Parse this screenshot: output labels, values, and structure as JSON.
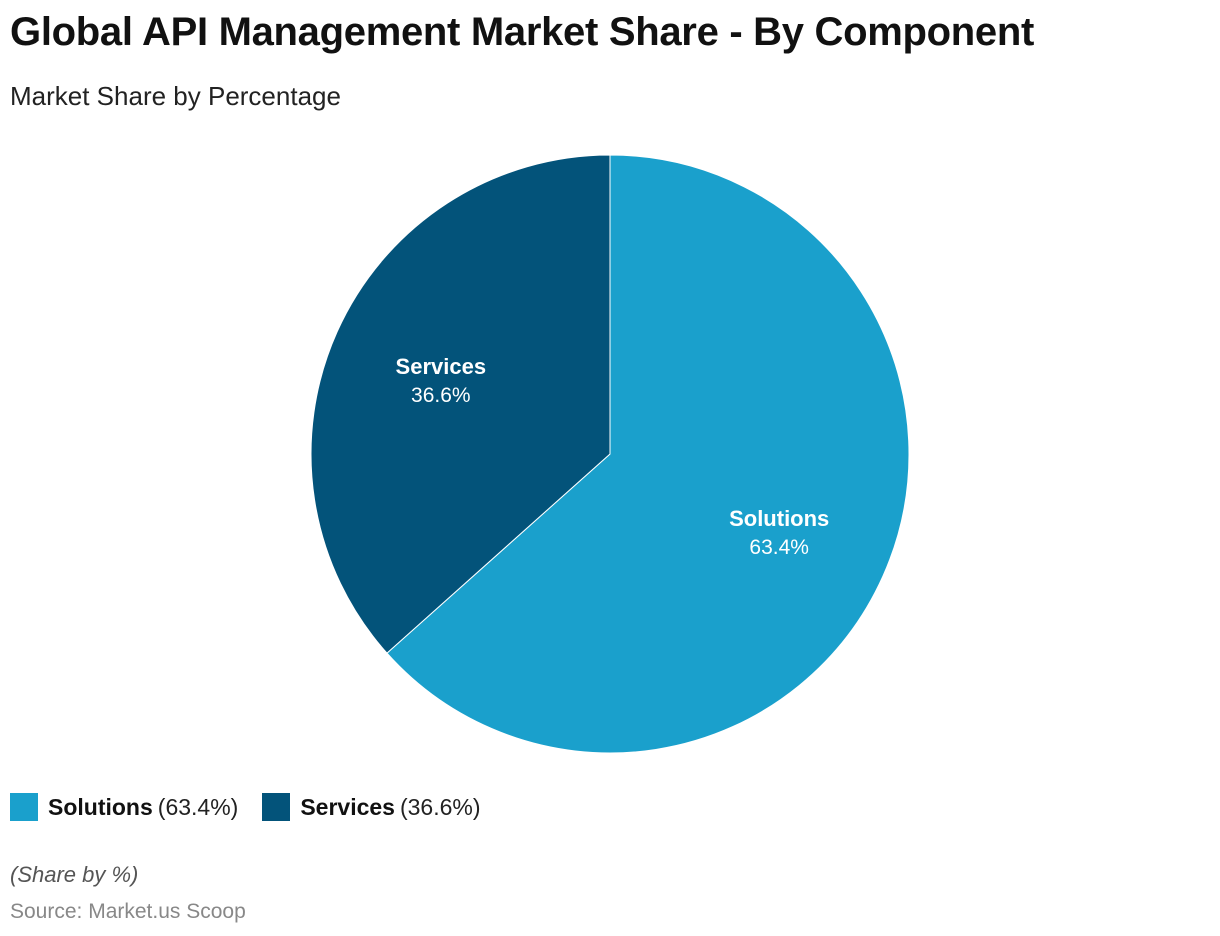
{
  "header": {
    "title": "Global API Management Market Share - By Component",
    "subtitle": "Market Share by Percentage"
  },
  "chart_data": {
    "type": "pie",
    "title": "Global API Management Market Share - By Component",
    "subtitle": "Market Share by Percentage",
    "categories": [
      "Solutions",
      "Services"
    ],
    "values": [
      63.4,
      36.6
    ],
    "value_labels": [
      "63.4%",
      "36.6%"
    ],
    "legend_values": [
      "(63.4%)",
      "(36.6%)"
    ],
    "colors": [
      "#1aa0cc",
      "#03537a"
    ],
    "start_angle": "12 o'clock, clockwise",
    "legend_position": "bottom-left"
  },
  "footer": {
    "note": "(Share by %)",
    "source": "Source: Market.us Scoop"
  }
}
